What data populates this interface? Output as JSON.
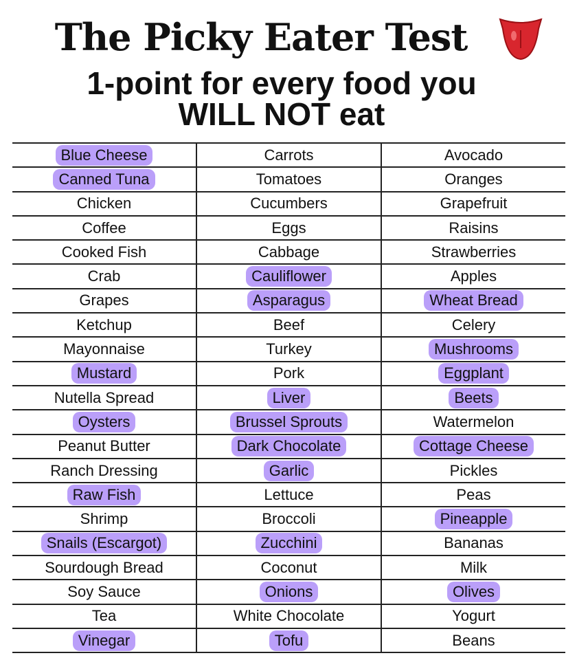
{
  "header": {
    "title": "The Picky Eater Test",
    "subtitle_line1": "1-point for every food you",
    "subtitle_line2": "WILL NOT eat"
  },
  "table": {
    "rows": [
      [
        "Blue Cheese",
        "Carrots",
        "Avocado"
      ],
      [
        "Canned Tuna",
        "Tomatoes",
        "Oranges"
      ],
      [
        "Chicken",
        "Cucumbers",
        "Grapefruit"
      ],
      [
        "Coffee",
        "Eggs",
        "Raisins"
      ],
      [
        "Cooked Fish",
        "Cabbage",
        "Strawberries"
      ],
      [
        "Crab",
        "Cauliflower",
        "Apples"
      ],
      [
        "Grapes",
        "Asparagus",
        "Wheat Bread"
      ],
      [
        "Ketchup",
        "Beef",
        "Celery"
      ],
      [
        "Mayonnaise",
        "Turkey",
        "Mushrooms"
      ],
      [
        "Mustard",
        "Pork",
        "Eggplant"
      ],
      [
        "Nutella Spread",
        "Liver",
        "Beets"
      ],
      [
        "Oysters",
        "Brussel Sprouts",
        "Watermelon"
      ],
      [
        "Peanut Butter",
        "Dark Chocolate",
        "Cottage Cheese"
      ],
      [
        "Ranch Dressing",
        "Garlic",
        "Pickles"
      ],
      [
        "Raw Fish",
        "Lettuce",
        "Peas"
      ],
      [
        "Shrimp",
        "Broccoli",
        "Pineapple"
      ],
      [
        "Snails (Escargot)",
        "Zucchini",
        "Bananas"
      ],
      [
        "Sourdough Bread",
        "Coconut",
        "Milk"
      ],
      [
        "Soy Sauce",
        "Onions",
        "Olives"
      ],
      [
        "Tea",
        "White Chocolate",
        "Yogurt"
      ],
      [
        "Vinegar",
        "Tofu",
        "Beans"
      ]
    ]
  }
}
